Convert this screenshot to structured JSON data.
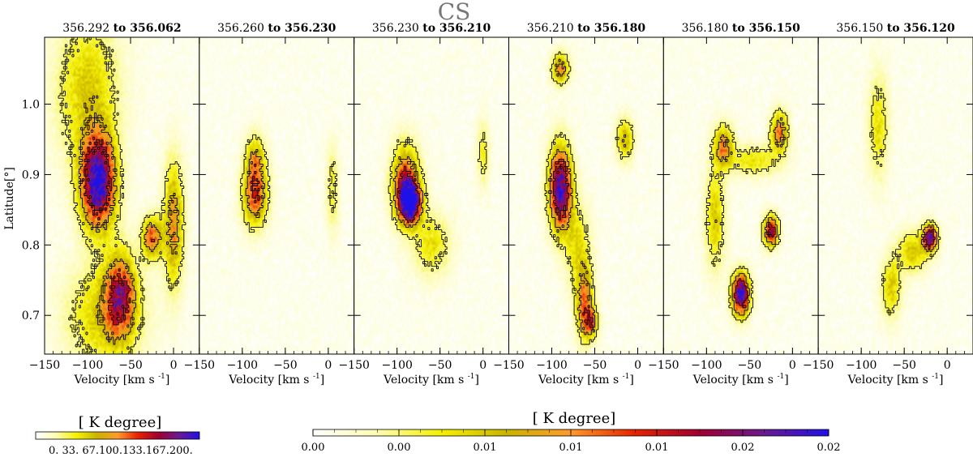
{
  "chart_data": {
    "type": "heatmap",
    "title": "CS",
    "panels": [
      {
        "label_from": "356.292",
        "label_to": "356.062",
        "word": "to",
        "blobs": [
          {
            "v": -88,
            "b": 0.89,
            "sv": 14,
            "sb": 0.045,
            "a": 1.0
          },
          {
            "v": -62,
            "b": 0.73,
            "sv": 12,
            "sb": 0.04,
            "a": 0.6
          },
          {
            "v": -25,
            "b": 0.81,
            "sv": 8,
            "sb": 0.02,
            "a": 0.55
          },
          {
            "v": 0,
            "b": 0.83,
            "sv": 8,
            "sb": 0.06,
            "a": 0.45
          },
          {
            "v": -100,
            "b": 1.02,
            "sv": 25,
            "sb": 0.07,
            "a": 0.3
          },
          {
            "v": -80,
            "b": 0.7,
            "sv": 30,
            "sb": 0.05,
            "a": 0.3
          }
        ]
      },
      {
        "label_from": "356.260",
        "label_to": "356.230",
        "word": "to",
        "blobs": [
          {
            "v": -85,
            "b": 0.87,
            "sv": 10,
            "sb": 0.03,
            "a": 0.55
          },
          {
            "v": -85,
            "b": 0.92,
            "sv": 8,
            "sb": 0.025,
            "a": 0.35
          },
          {
            "v": 5,
            "b": 0.88,
            "sv": 5,
            "sb": 0.04,
            "a": 0.2
          }
        ]
      },
      {
        "label_from": "356.230",
        "label_to": "356.210",
        "word": "to",
        "blobs": [
          {
            "v": -85,
            "b": 0.86,
            "sv": 9,
            "sb": 0.02,
            "a": 1.0
          },
          {
            "v": -90,
            "b": 0.89,
            "sv": 11,
            "sb": 0.035,
            "a": 0.6
          },
          {
            "v": -60,
            "b": 0.8,
            "sv": 15,
            "sb": 0.03,
            "a": 0.25
          },
          {
            "v": 0,
            "b": 0.93,
            "sv": 5,
            "sb": 0.03,
            "a": 0.2
          }
        ]
      },
      {
        "label_from": "356.210",
        "label_to": "356.180",
        "word": "to",
        "blobs": [
          {
            "v": -90,
            "b": 0.88,
            "sv": 9,
            "sb": 0.04,
            "a": 0.95
          },
          {
            "v": -62,
            "b": 0.72,
            "sv": 7,
            "sb": 0.035,
            "a": 0.5
          },
          {
            "v": -55,
            "b": 0.69,
            "sv": 6,
            "sb": 0.015,
            "a": 0.45
          },
          {
            "v": -90,
            "b": 1.05,
            "sv": 7,
            "sb": 0.015,
            "a": 0.45
          },
          {
            "v": -15,
            "b": 0.95,
            "sv": 7,
            "sb": 0.02,
            "a": 0.35
          },
          {
            "v": -70,
            "b": 0.8,
            "sv": 10,
            "sb": 0.04,
            "a": 0.25
          }
        ]
      },
      {
        "label_from": "356.180",
        "label_to": "356.150",
        "word": "to",
        "blobs": [
          {
            "v": -60,
            "b": 0.73,
            "sv": 7,
            "sb": 0.02,
            "a": 1.0
          },
          {
            "v": -25,
            "b": 0.82,
            "sv": 6,
            "sb": 0.015,
            "a": 0.75
          },
          {
            "v": -80,
            "b": 0.94,
            "sv": 8,
            "sb": 0.02,
            "a": 0.45
          },
          {
            "v": -15,
            "b": 0.96,
            "sv": 7,
            "sb": 0.02,
            "a": 0.5
          },
          {
            "v": -90,
            "b": 0.84,
            "sv": 8,
            "sb": 0.05,
            "a": 0.3
          },
          {
            "v": -45,
            "b": 0.92,
            "sv": 20,
            "sb": 0.015,
            "a": 0.25
          }
        ]
      },
      {
        "label_from": "356.150",
        "label_to": "356.120",
        "word": "to",
        "blobs": [
          {
            "v": -20,
            "b": 0.81,
            "sv": 6,
            "sb": 0.013,
            "a": 0.85
          },
          {
            "v": -65,
            "b": 0.74,
            "sv": 8,
            "sb": 0.03,
            "a": 0.3
          },
          {
            "v": -80,
            "b": 0.97,
            "sv": 8,
            "sb": 0.05,
            "a": 0.25
          },
          {
            "v": -40,
            "b": 0.79,
            "sv": 12,
            "sb": 0.02,
            "a": 0.3
          }
        ]
      }
    ],
    "xlabel": "Velocity [km s",
    "xlabel_sup": "-1",
    "xlabel_close": "]",
    "ylabel": "Latitude[°]",
    "x_range": [
      -150,
      30
    ],
    "y_range": [
      0.645,
      1.095
    ],
    "x_ticks": [
      -150,
      -100,
      -50,
      0
    ],
    "x_tick_labels": [
      "−150",
      "−100",
      "−50",
      "0"
    ],
    "y_ticks": [
      0.7,
      0.8,
      0.9,
      1.0
    ],
    "y_tick_labels": [
      "0.7",
      "0.8",
      "0.9",
      "1.0"
    ],
    "contour_levels": [
      0.18,
      0.4,
      0.65
    ],
    "colorbar_small": {
      "title": "[  K degree]",
      "tick_labels": [
        "0.",
        "33.",
        "67.",
        "100.",
        "133.",
        "167.",
        "200."
      ],
      "tick_text": "0.  33.  67.100.133.167.200."
    },
    "colorbar_large": {
      "title": "[  K degree]",
      "tick_labels": [
        "0.00",
        "0.00",
        "0.01",
        "0.01",
        "0.01",
        "0.02",
        "0.02"
      ]
    },
    "colormap": [
      "#ffffff",
      "#fdfcb0",
      "#f5f000",
      "#c8b400",
      "#ff9a2a",
      "#e62200",
      "#a00030",
      "#6a1a90",
      "#1e10e8"
    ]
  }
}
